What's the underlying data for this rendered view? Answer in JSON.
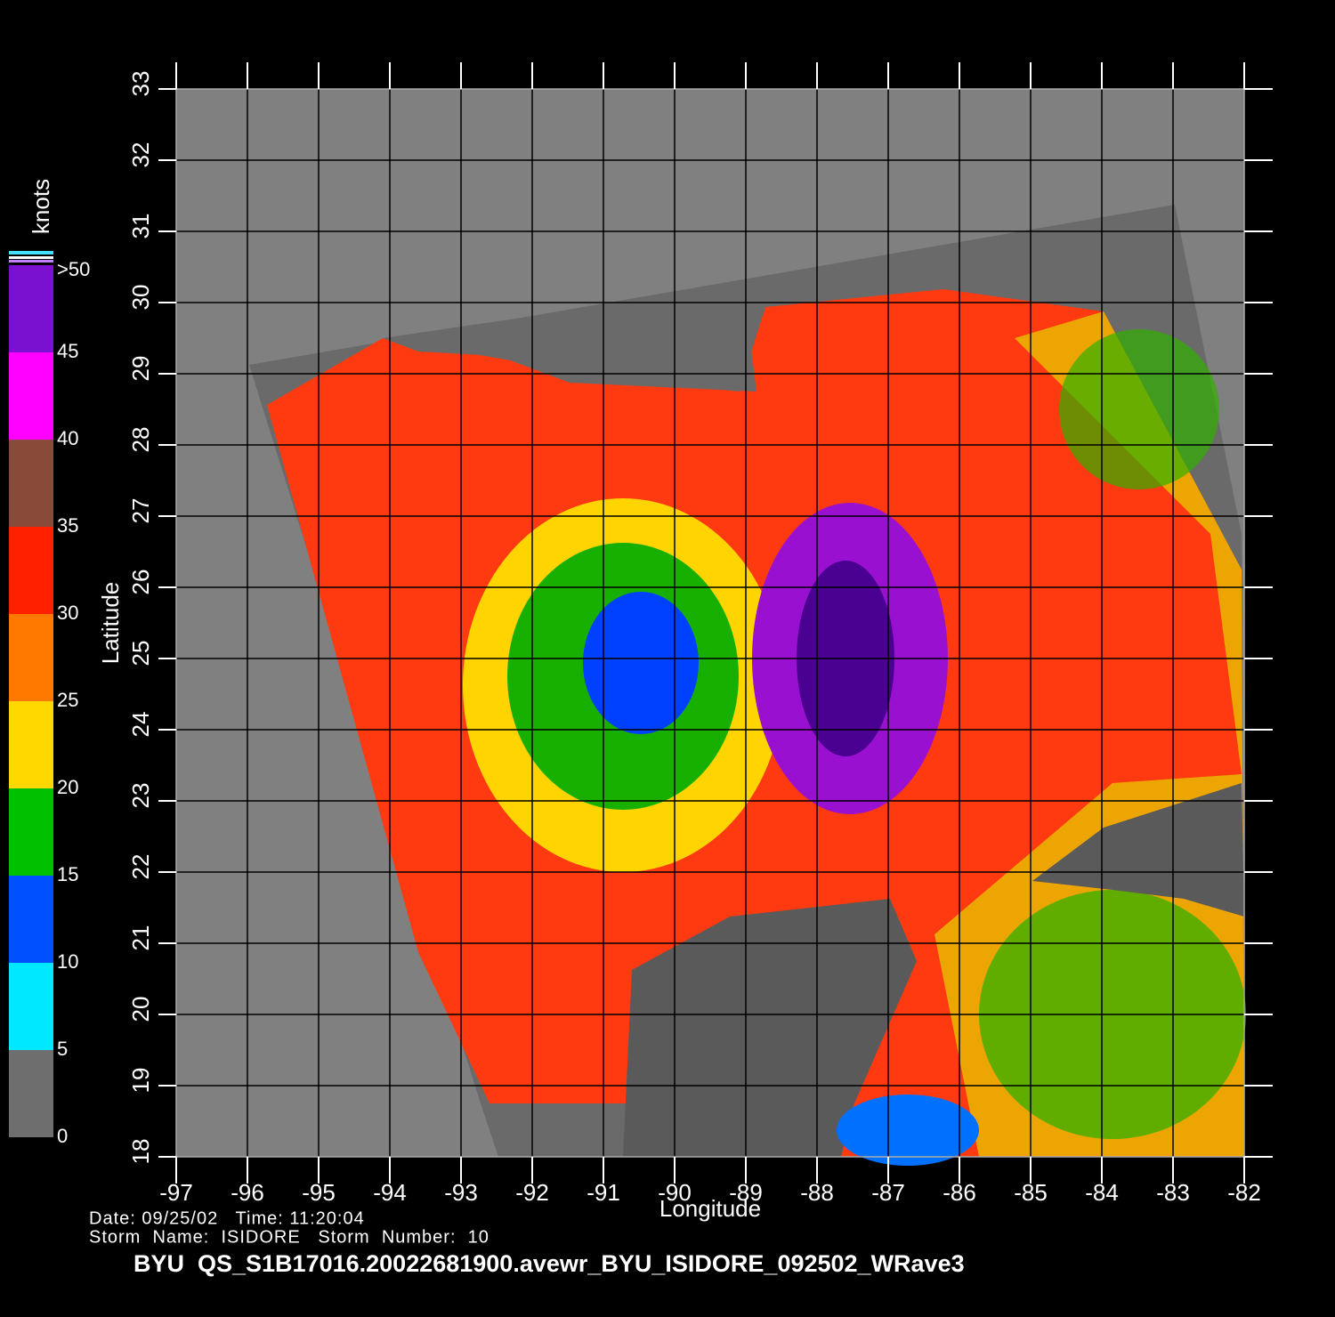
{
  "map": {
    "title": "BYU  QS_S1B17016.20022681900.avewr_BYU_ISIDORE_092502_WRave3",
    "date_line": "Date: 09/25/02   Time: 11:20:04",
    "storm_line": "Storm  Name:  ISIDORE   Storm  Number:  10",
    "x_label": "Longitude",
    "y_label": "Latitude",
    "xlim": [
      -97,
      -82
    ],
    "ylim": [
      18,
      33
    ],
    "xticks": [
      -97,
      -96,
      -95,
      -94,
      -93,
      -92,
      -91,
      -90,
      -89,
      -88,
      -87,
      -86,
      -85,
      -84,
      -83,
      -82
    ],
    "yticks": [
      18,
      19,
      20,
      21,
      22,
      23,
      24,
      25,
      26,
      27,
      28,
      29,
      30,
      31,
      32,
      33
    ],
    "grid": true
  },
  "colorbar": {
    "unit": "knots",
    "ticks": [
      0,
      5,
      10,
      15,
      20,
      25,
      30,
      35,
      40,
      45,
      {
        "value": 50,
        "label": ">50"
      }
    ],
    "colors": [
      "#6e6e6e",
      "#00e8ff",
      "#0050ff",
      "#00c000",
      "#ffd800",
      "#ff7800",
      "#ff2000",
      "#8a4a3a",
      "#ff00ff",
      "#7a10d0"
    ]
  }
}
